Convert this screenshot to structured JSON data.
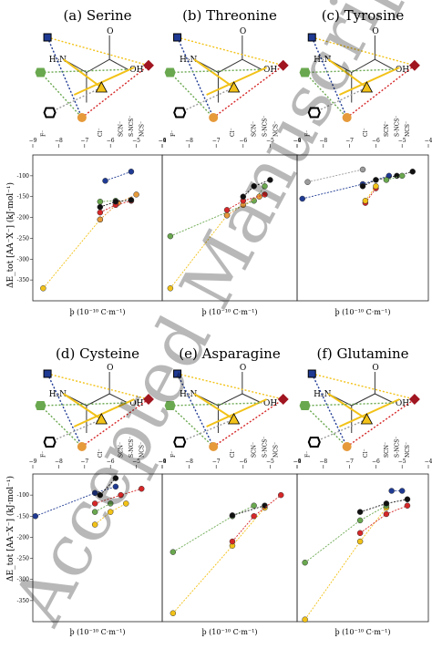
{
  "figure": {
    "y_axis_label": "ΔE_tot [AA⁻X⁻] (kJ·mol⁻¹)",
    "x_axis_label": "þ (10⁻¹⁰ C·m⁻¹)",
    "watermark": "Accepted Manuscript",
    "anion_labels": [
      "F⁻",
      "Cl⁻",
      "SCN⁻",
      "S-NCS⁻",
      "NCS⁻"
    ],
    "top_axis_ticks": [
      "−9",
      "−8",
      "−7",
      "−6",
      "−5",
      "−4"
    ],
    "colors": {
      "blue": "#1f3a93",
      "green": "#6aa84f",
      "black": "#111111",
      "yellow": "#f2c218",
      "orange": "#e69a3a",
      "red": "#d62728",
      "darkred": "#a01520",
      "grey": "#9b9b9b"
    },
    "panels": [
      {
        "title": "(a) Serine"
      },
      {
        "title": "(b) Threonine"
      },
      {
        "title": "(c) Tyrosine"
      },
      {
        "title": "(d) Cysteine"
      },
      {
        "title": "(e) Asparagine"
      },
      {
        "title": "(f) Glutamine"
      }
    ]
  },
  "chart_data": [
    {
      "type": "scatter",
      "title": "(a) Serine",
      "xlim": [
        -9,
        -4
      ],
      "ylim": [
        -400,
        -50
      ],
      "series": [
        {
          "color": "#f2c218",
          "x": [
            -8.6,
            -6.4
          ],
          "y": [
            -370,
            -205
          ]
        },
        {
          "color": "#e69a3a",
          "x": [
            -6.4,
            -5.7,
            -5.0
          ],
          "y": [
            -205,
            -165,
            -145
          ]
        },
        {
          "color": "#d62728",
          "x": [
            -6.4,
            -5.8,
            -5.2
          ],
          "y": [
            -188,
            -170,
            -160
          ]
        },
        {
          "color": "#6aa84f",
          "x": [
            -6.4,
            -5.8
          ],
          "y": [
            -162,
            -160
          ]
        },
        {
          "color": "#111111",
          "x": [
            -6.4,
            -5.8,
            -5.2
          ],
          "y": [
            -175,
            -162,
            -158
          ]
        },
        {
          "color": "#1f3a93",
          "x": [
            -6.2,
            -5.2
          ],
          "y": [
            -112,
            -90
          ]
        }
      ]
    },
    {
      "type": "scatter",
      "title": "(b) Threonine",
      "xlim": [
        -9,
        -4
      ],
      "ylim": [
        -400,
        -50
      ],
      "series": [
        {
          "color": "#f2c218",
          "x": [
            -8.7,
            -6.6
          ],
          "y": [
            -370,
            -195
          ]
        },
        {
          "color": "#6aa84f",
          "x": [
            -8.7,
            -5.6,
            -5.2
          ],
          "y": [
            -245,
            -160,
            -125
          ]
        },
        {
          "color": "#e69a3a",
          "x": [
            -6.6,
            -6.0,
            -5.4
          ],
          "y": [
            -195,
            -170,
            -150
          ]
        },
        {
          "color": "#d62728",
          "x": [
            -6.6,
            -6.0,
            -5.2
          ],
          "y": [
            -182,
            -160,
            -145
          ]
        },
        {
          "color": "#111111",
          "x": [
            -6.0,
            -5.6,
            -5.0
          ],
          "y": [
            -150,
            -125,
            -110
          ]
        }
      ]
    },
    {
      "type": "scatter",
      "title": "(c) Tyrosine",
      "xlim": [
        -9,
        -4
      ],
      "ylim": [
        -400,
        -50
      ],
      "series": [
        {
          "color": "#1f3a93",
          "x": [
            -8.8,
            -6.5,
            -5.5
          ],
          "y": [
            -155,
            -120,
            -100
          ]
        },
        {
          "color": "#9b9b9b",
          "x": [
            -8.6,
            -6.5
          ],
          "y": [
            -115,
            -85
          ]
        },
        {
          "color": "#111111",
          "x": [
            -6.5,
            -6.0,
            -5.2,
            -4.6
          ],
          "y": [
            -125,
            -110,
            -100,
            -90
          ]
        },
        {
          "color": "#d62728",
          "x": [
            -6.4,
            -6.0
          ],
          "y": [
            -165,
            -130
          ]
        },
        {
          "color": "#f2c218",
          "x": [
            -6.4,
            -6.0
          ],
          "y": [
            -160,
            -125
          ]
        },
        {
          "color": "#6aa84f",
          "x": [
            -5.6,
            -5.0
          ],
          "y": [
            -110,
            -100
          ]
        }
      ]
    },
    {
      "type": "scatter",
      "title": "(d) Cysteine",
      "xlim": [
        -9,
        -4
      ],
      "ylim": [
        -400,
        -50
      ],
      "series": [
        {
          "color": "#1f3a93",
          "x": [
            -8.9,
            -6.6,
            -5.8
          ],
          "y": [
            -150,
            -95,
            -80
          ]
        },
        {
          "color": "#f2c218",
          "x": [
            -6.6,
            -6.0,
            -5.4
          ],
          "y": [
            -170,
            -140,
            -120
          ]
        },
        {
          "color": "#d62728",
          "x": [
            -6.6,
            -5.6,
            -4.8
          ],
          "y": [
            -120,
            -100,
            -85
          ]
        },
        {
          "color": "#111111",
          "x": [
            -6.4,
            -5.8
          ],
          "y": [
            -100,
            -60
          ]
        },
        {
          "color": "#6aa84f",
          "x": [
            -6.6,
            -6.0
          ],
          "y": [
            -140,
            -120
          ]
        }
      ]
    },
    {
      "type": "scatter",
      "title": "(e) Asparagine",
      "xlim": [
        -9,
        -4
      ],
      "ylim": [
        -400,
        -50
      ],
      "series": [
        {
          "color": "#f2c218",
          "x": [
            -8.6,
            -6.4,
            -5.2
          ],
          "y": [
            -380,
            -220,
            -130
          ]
        },
        {
          "color": "#6aa84f",
          "x": [
            -8.6,
            -6.4,
            -5.6
          ],
          "y": [
            -235,
            -150,
            -125
          ]
        },
        {
          "color": "#111111",
          "x": [
            -6.4,
            -5.2
          ],
          "y": [
            -148,
            -125
          ]
        },
        {
          "color": "#d62728",
          "x": [
            -6.4,
            -5.6,
            -4.6
          ],
          "y": [
            -210,
            -150,
            -100
          ]
        }
      ]
    },
    {
      "type": "scatter",
      "title": "(f) Glutamine",
      "xlim": [
        -9,
        -4
      ],
      "ylim": [
        -400,
        -50
      ],
      "series": [
        {
          "color": "#f2c218",
          "x": [
            -8.7,
            -6.6,
            -5.6
          ],
          "y": [
            -395,
            -210,
            -130
          ]
        },
        {
          "color": "#6aa84f",
          "x": [
            -8.7,
            -6.6,
            -5.6
          ],
          "y": [
            -260,
            -160,
            -125
          ]
        },
        {
          "color": "#111111",
          "x": [
            -6.6,
            -5.6,
            -4.8
          ],
          "y": [
            -140,
            -120,
            -110
          ]
        },
        {
          "color": "#d62728",
          "x": [
            -6.6,
            -5.6,
            -4.8
          ],
          "y": [
            -190,
            -145,
            -125
          ]
        },
        {
          "color": "#1f3a93",
          "x": [
            -5.4,
            -5.0
          ],
          "y": [
            -90,
            -90
          ]
        }
      ]
    }
  ]
}
